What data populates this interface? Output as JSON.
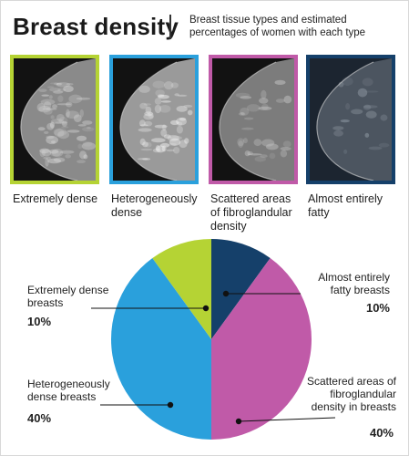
{
  "header": {
    "title": "Breast density",
    "subtitle": "Breast tissue types and estimated percentages of women with each type"
  },
  "images": [
    {
      "caption": "Extremely dense",
      "border_color": "#b5d334",
      "density": "extreme"
    },
    {
      "caption": "Heterogeneously dense",
      "border_color": "#2aa0dc",
      "density": "hetero"
    },
    {
      "caption": "Scattered areas of fibroglandular density",
      "border_color": "#c05aa8",
      "density": "scattered"
    },
    {
      "caption": "Almost entirely fatty",
      "border_color": "#15406a",
      "density": "fatty"
    }
  ],
  "chart_data": {
    "type": "pie",
    "slices": [
      {
        "label": "Almost entirely fatty breasts",
        "value": 10,
        "display": "10%",
        "color": "#15406a"
      },
      {
        "label": "Scattered areas of fibroglandular density in breasts",
        "value": 40,
        "display": "40%",
        "color": "#c05aa8"
      },
      {
        "label": "Heterogeneously dense breasts",
        "value": 40,
        "display": "40%",
        "color": "#2aa0dc"
      },
      {
        "label": "Extremely dense breasts",
        "value": 10,
        "display": "10%",
        "color": "#b5d334"
      }
    ]
  }
}
